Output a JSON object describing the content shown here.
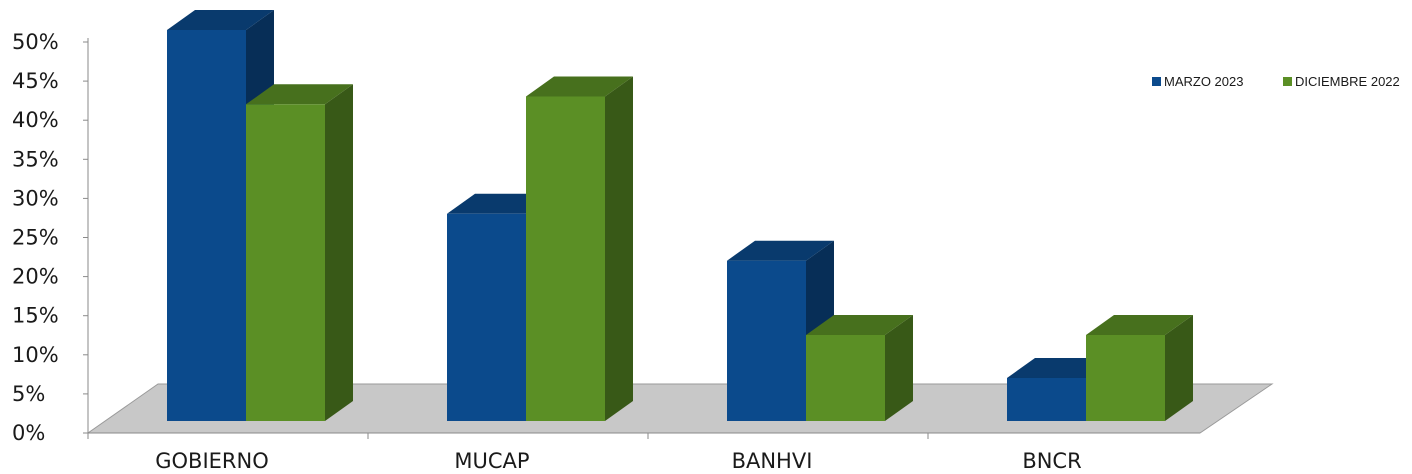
{
  "chart_data": {
    "type": "bar",
    "categories": [
      "GOBIERNO",
      "MUCAP",
      "BANHVI",
      "BNCR"
    ],
    "series": [
      {
        "name": "MARZO 2023",
        "values": [
          50,
          26.5,
          20.5,
          5.5
        ],
        "color": "#0b4a8c"
      },
      {
        "name": "DICIEMBRE 2022",
        "values": [
          40.5,
          41.5,
          11,
          11
        ],
        "color": "#5b8f25"
      }
    ],
    "yticks": [
      "0%",
      "5%",
      "10%",
      "15%",
      "20%",
      "25%",
      "30%",
      "35%",
      "40%",
      "45%",
      "50%"
    ],
    "ylim": [
      0,
      50
    ],
    "grid": false,
    "legend_position": "top-right",
    "three_d": true,
    "floor_color": "#c8c8c8"
  }
}
